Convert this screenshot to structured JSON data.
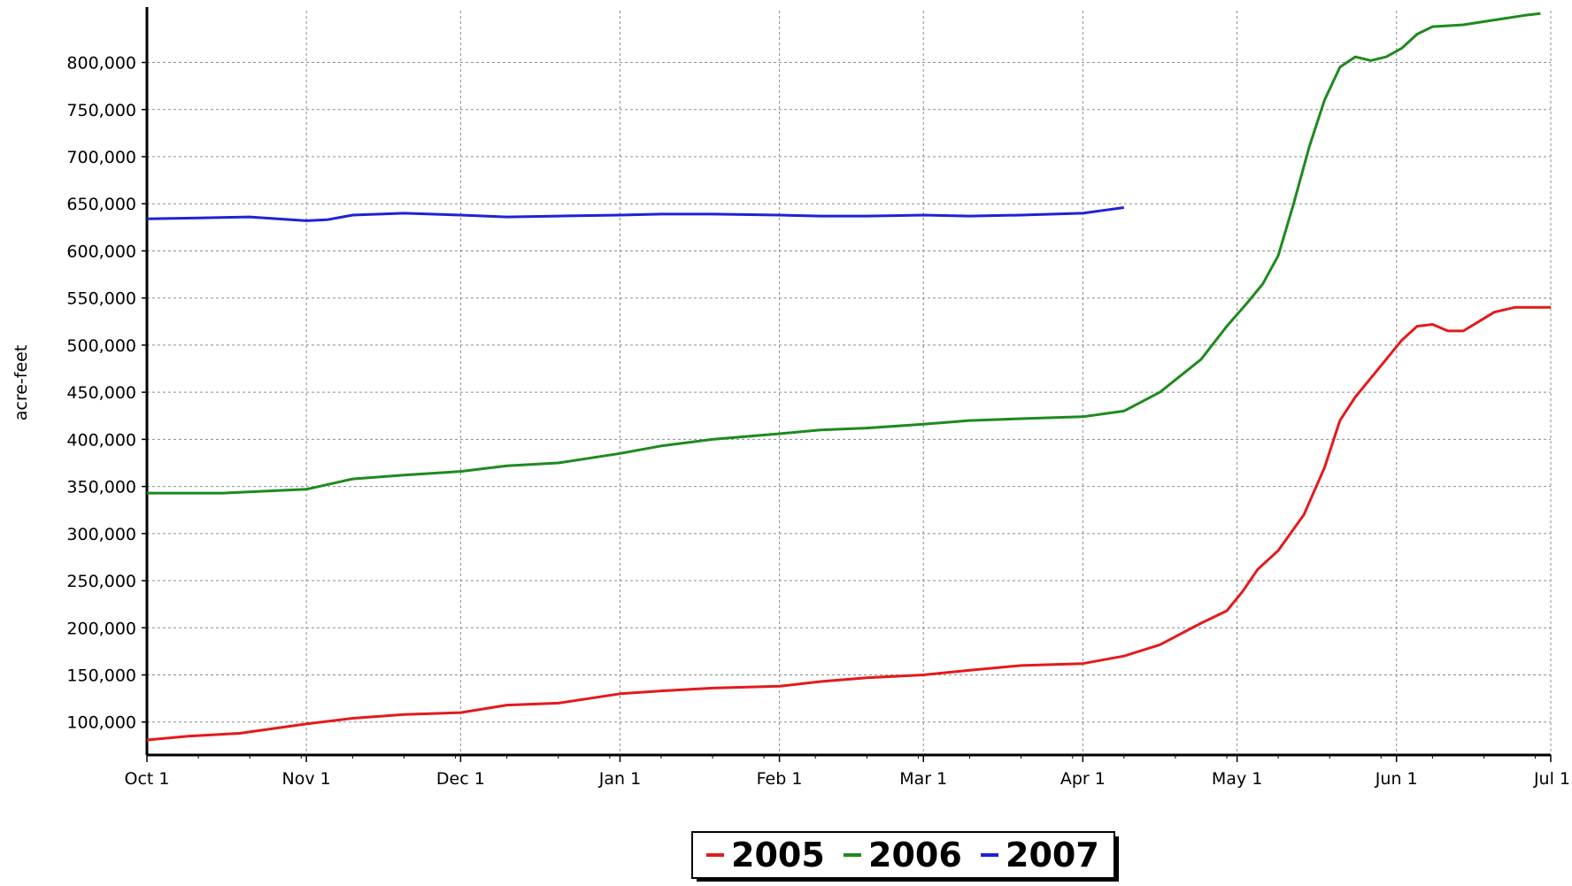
{
  "chart_data": {
    "type": "line",
    "title": "",
    "xlabel": "",
    "ylabel": "acre-feet",
    "x_ticks": [
      "Oct 1",
      "Nov 1",
      "Dec 1",
      "Jan 1",
      "Feb 1",
      "Mar 1",
      "Apr 1",
      "May 1",
      "Jun 1",
      "Jul 1"
    ],
    "y_ticks": [
      "100,000",
      "150,000",
      "200,000",
      "250,000",
      "300,000",
      "350,000",
      "400,000",
      "450,000",
      "500,000",
      "550,000",
      "600,000",
      "650,000",
      "700,000",
      "750,000",
      "800,000"
    ],
    "ylim": [
      65000,
      855000
    ],
    "xlim_days": [
      0,
      273
    ],
    "grid": true,
    "legend_position": "bottom-center",
    "series": [
      {
        "name": "2005",
        "color": "#e31a1c",
        "x": [
          0,
          8,
          18,
          31,
          40,
          50,
          61,
          70,
          80,
          92,
          100,
          110,
          123,
          131,
          140,
          151,
          160,
          170,
          182,
          190,
          197,
          205,
          210,
          213,
          216,
          220,
          225,
          229,
          232,
          235,
          238,
          241,
          244,
          247,
          250,
          253,
          256,
          259,
          262,
          266,
          270,
          273
        ],
        "y": [
          81000,
          85000,
          88000,
          98000,
          104000,
          108000,
          110000,
          118000,
          120000,
          130000,
          133000,
          136000,
          138000,
          143000,
          147000,
          150000,
          155000,
          160000,
          162000,
          170000,
          182000,
          205000,
          218000,
          238000,
          262000,
          282000,
          320000,
          370000,
          420000,
          445000,
          465000,
          485000,
          505000,
          520000,
          522000,
          515000,
          515000,
          525000,
          535000,
          540000,
          540000,
          540000
        ]
      },
      {
        "name": "2006",
        "color": "#1e8a1e",
        "x": [
          0,
          15,
          31,
          40,
          50,
          61,
          70,
          80,
          92,
          100,
          110,
          123,
          131,
          140,
          151,
          160,
          170,
          182,
          190,
          197,
          205,
          210,
          214,
          217,
          220,
          223,
          226,
          229,
          232,
          235,
          238,
          241,
          244,
          247,
          250,
          256,
          262,
          268,
          271
        ],
        "y": [
          343000,
          343000,
          347000,
          358000,
          362000,
          366000,
          372000,
          375000,
          385000,
          393000,
          400000,
          406000,
          410000,
          412000,
          416000,
          420000,
          422000,
          424000,
          430000,
          450000,
          485000,
          520000,
          545000,
          565000,
          595000,
          650000,
          710000,
          760000,
          795000,
          806000,
          802000,
          806000,
          815000,
          830000,
          838000,
          840000,
          845000,
          850000,
          852000
        ]
      },
      {
        "name": "2007",
        "color": "#1f22d6",
        "x": [
          0,
          10,
          20,
          31,
          35,
          40,
          50,
          61,
          70,
          80,
          92,
          100,
          110,
          123,
          131,
          140,
          151,
          160,
          170,
          182,
          186,
          190
        ],
        "y": [
          634000,
          635000,
          636000,
          632000,
          633000,
          638000,
          640000,
          638000,
          636000,
          637000,
          638000,
          639000,
          639000,
          638000,
          637000,
          637000,
          638000,
          637000,
          638000,
          640000,
          643000,
          646000
        ]
      }
    ]
  }
}
